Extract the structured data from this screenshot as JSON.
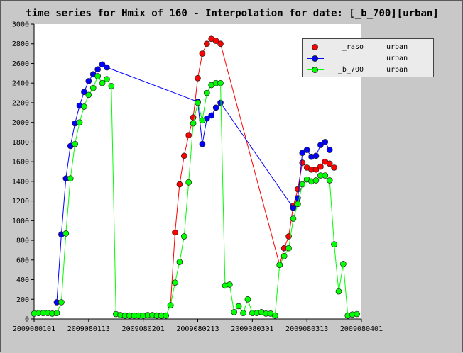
{
  "chart_data": {
    "type": "line",
    "title": "time series for Hmix of 160 - Interpolation for date: [_b_700][urban]",
    "xlabel": "",
    "ylabel": "",
    "ylim": [
      0,
      3000
    ],
    "yticks": [
      0,
      200,
      400,
      600,
      800,
      1000,
      1200,
      1400,
      1600,
      1800,
      2000,
      2200,
      2400,
      2600,
      2800,
      3000
    ],
    "xlim": [
      0,
      72
    ],
    "xticks": [
      {
        "x": 0,
        "label": "2009080101"
      },
      {
        "x": 12,
        "label": "2009080113"
      },
      {
        "x": 24,
        "label": "2009080201"
      },
      {
        "x": 36,
        "label": "2009080213"
      },
      {
        "x": 48,
        "label": "2009080301"
      },
      {
        "x": 60,
        "label": "2009080313"
      },
      {
        "x": 72,
        "label": "2009080401"
      }
    ],
    "grid": false,
    "legend_position": "top-right",
    "series": [
      {
        "name": "_raso",
        "region": "urban",
        "color": "#ff0000",
        "points": [
          [
            30,
            140
          ],
          [
            31,
            880
          ],
          [
            32,
            1370
          ],
          [
            33,
            1660
          ],
          [
            34,
            1870
          ],
          [
            35,
            2050
          ],
          [
            36,
            2450
          ],
          [
            37,
            2700
          ],
          [
            38,
            2800
          ],
          [
            39,
            2850
          ],
          [
            40,
            2830
          ],
          [
            41,
            2800
          ],
          [
            54,
            550
          ],
          [
            55,
            720
          ],
          [
            56,
            840
          ],
          [
            57,
            1150
          ],
          [
            58,
            1320
          ],
          [
            59,
            1590
          ],
          [
            60,
            1540
          ],
          [
            61,
            1520
          ],
          [
            62,
            1520
          ],
          [
            63,
            1550
          ],
          [
            64,
            1600
          ],
          [
            65,
            1580
          ],
          [
            66,
            1540
          ]
        ]
      },
      {
        "name": "",
        "region": "urban",
        "color": "#0000ff",
        "points": [
          [
            5,
            170
          ],
          [
            6,
            860
          ],
          [
            7,
            1430
          ],
          [
            8,
            1760
          ],
          [
            9,
            1990
          ],
          [
            10,
            2170
          ],
          [
            11,
            2310
          ],
          [
            12,
            2420
          ],
          [
            13,
            2490
          ],
          [
            14,
            2540
          ],
          [
            15,
            2590
          ],
          [
            16,
            2560
          ],
          [
            36,
            2210
          ],
          [
            37,
            1780
          ],
          [
            38,
            2040
          ],
          [
            39,
            2070
          ],
          [
            40,
            2150
          ],
          [
            41,
            2200
          ],
          [
            57,
            1130
          ],
          [
            58,
            1230
          ],
          [
            59,
            1690
          ],
          [
            60,
            1720
          ],
          [
            61,
            1650
          ],
          [
            62,
            1660
          ],
          [
            63,
            1770
          ],
          [
            64,
            1800
          ],
          [
            65,
            1720
          ]
        ]
      },
      {
        "name": "_b_700",
        "region": "urban",
        "color": "#00ff00",
        "points": [
          [
            0,
            55
          ],
          [
            1,
            60
          ],
          [
            2,
            60
          ],
          [
            3,
            60
          ],
          [
            4,
            55
          ],
          [
            5,
            60
          ],
          [
            6,
            170
          ],
          [
            7,
            870
          ],
          [
            8,
            1430
          ],
          [
            9,
            1780
          ],
          [
            10,
            2000
          ],
          [
            11,
            2160
          ],
          [
            12,
            2280
          ],
          [
            13,
            2350
          ],
          [
            14,
            2470
          ],
          [
            15,
            2400
          ],
          [
            16,
            2440
          ],
          [
            17,
            2370
          ],
          [
            18,
            50
          ],
          [
            19,
            40
          ],
          [
            20,
            35
          ],
          [
            21,
            35
          ],
          [
            22,
            35
          ],
          [
            23,
            35
          ],
          [
            24,
            35
          ],
          [
            25,
            40
          ],
          [
            26,
            40
          ],
          [
            27,
            35
          ],
          [
            28,
            35
          ],
          [
            29,
            35
          ],
          [
            30,
            140
          ],
          [
            31,
            370
          ],
          [
            32,
            580
          ],
          [
            33,
            840
          ],
          [
            34,
            1390
          ],
          [
            35,
            1990
          ],
          [
            36,
            2200
          ],
          [
            37,
            2020
          ],
          [
            38,
            2300
          ],
          [
            39,
            2380
          ],
          [
            40,
            2400
          ],
          [
            41,
            2400
          ],
          [
            42,
            340
          ],
          [
            43,
            350
          ],
          [
            44,
            70
          ],
          [
            45,
            130
          ],
          [
            46,
            60
          ],
          [
            47,
            200
          ],
          [
            48,
            60
          ],
          [
            49,
            60
          ],
          [
            50,
            70
          ],
          [
            51,
            55
          ],
          [
            52,
            55
          ],
          [
            53,
            35
          ],
          [
            54,
            550
          ],
          [
            55,
            640
          ],
          [
            56,
            720
          ],
          [
            57,
            1020
          ],
          [
            58,
            1170
          ],
          [
            59,
            1370
          ],
          [
            60,
            1420
          ],
          [
            61,
            1400
          ],
          [
            62,
            1410
          ],
          [
            63,
            1460
          ],
          [
            64,
            1460
          ],
          [
            65,
            1410
          ],
          [
            66,
            760
          ],
          [
            67,
            280
          ],
          [
            68,
            560
          ],
          [
            69,
            35
          ],
          [
            70,
            45
          ],
          [
            71,
            50
          ]
        ]
      }
    ]
  }
}
